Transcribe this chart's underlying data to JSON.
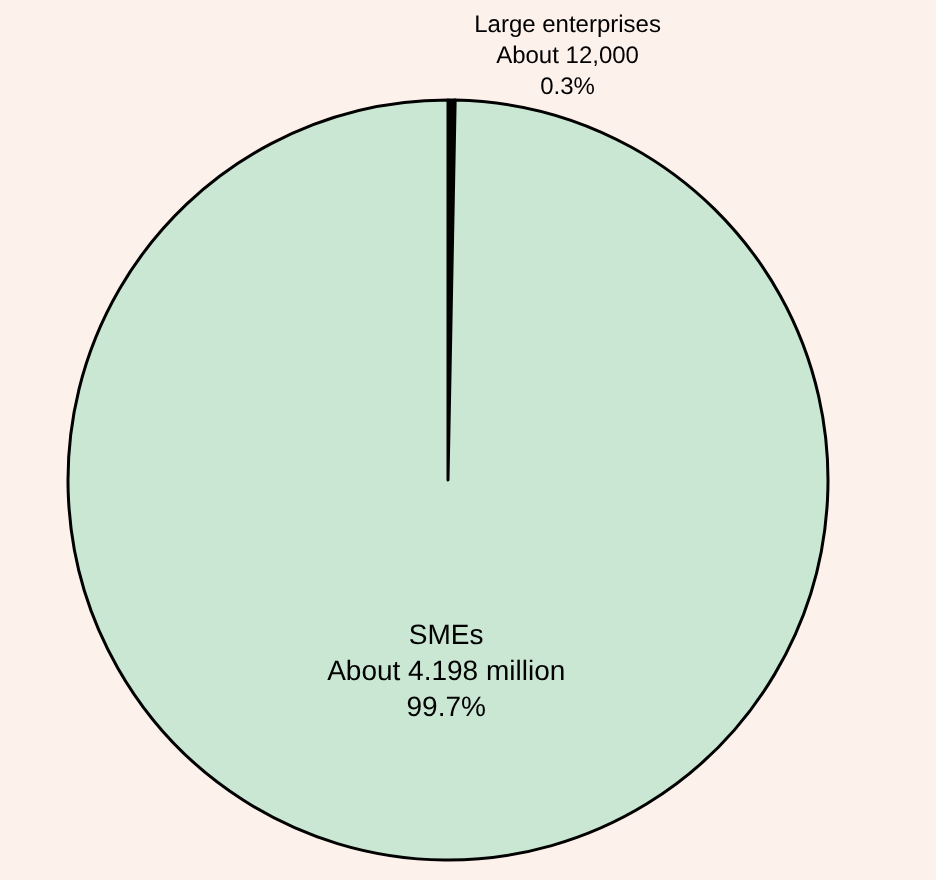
{
  "chart_data": {
    "type": "pie",
    "categories": [
      "Large enterprises",
      "SMEs"
    ],
    "values": [
      0.3,
      99.7
    ],
    "value_labels": [
      "About 12,000\n0.3%",
      "About 4.198 million\n99.7%"
    ],
    "colors": [
      "#000000",
      "#c9e7d3"
    ],
    "legend": false
  }
}
